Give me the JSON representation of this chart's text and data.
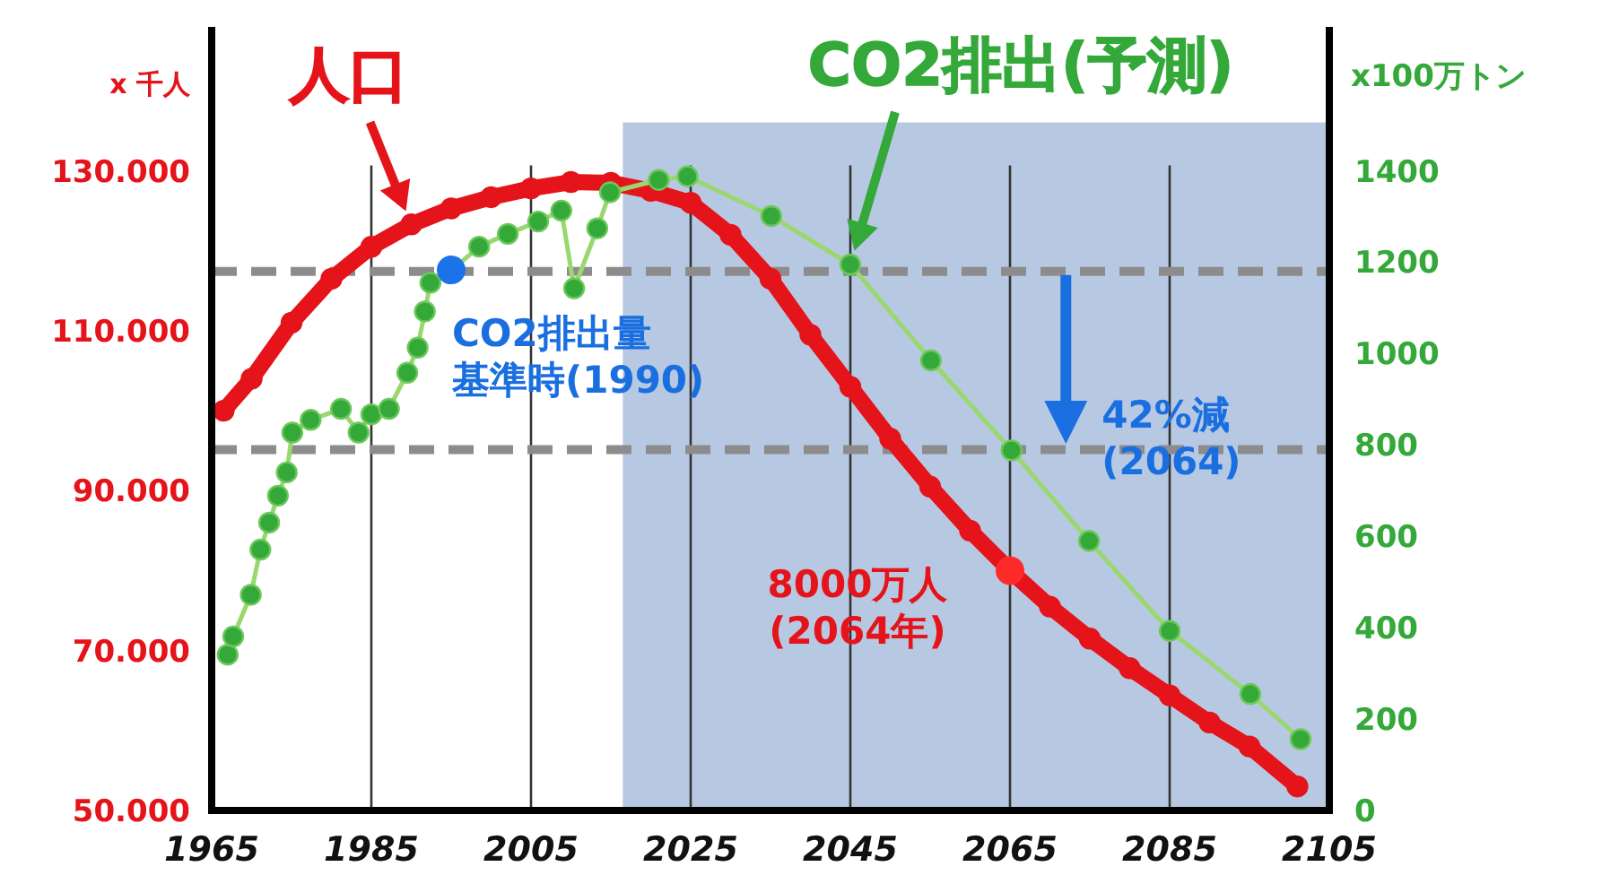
{
  "chart_data": {
    "type": "line",
    "ylabel": "x 千人",
    "y2label": "x100万トン",
    "xlim": [
      1965,
      2105
    ],
    "xticks": [
      1965,
      1985,
      2005,
      2025,
      2045,
      2065,
      2085,
      2105
    ],
    "ylim": [
      50000,
      148000
    ],
    "yticks": [
      {
        "value": 50000,
        "label": "50.000"
      },
      {
        "value": 70000,
        "label": "70.000"
      },
      {
        "value": 90000,
        "label": "90.000"
      },
      {
        "value": 110000,
        "label": "110.000"
      },
      {
        "value": 130000,
        "label": "130.000"
      }
    ],
    "y2lim": [
      0,
      1715
    ],
    "y2ticks": [
      0,
      200,
      400,
      600,
      800,
      1000,
      1200,
      1400
    ],
    "grid": "x",
    "marker": "circle",
    "line_style": "solid",
    "bands": [
      {
        "axis": "x",
        "from": 2016.5,
        "to": 2105,
        "color": "#b7c9e2"
      }
    ],
    "ref_lines": [
      {
        "axis": "y2",
        "value": 1180,
        "color": "#8c8c8c",
        "line_style": "dashed"
      },
      {
        "axis": "y2",
        "value": 790,
        "color": "#8c8c8c",
        "line_style": "dashed"
      }
    ],
    "series": [
      {
        "name": "人口",
        "color": "#e5131a",
        "x": [
          1966.5,
          1970,
          1975,
          1980,
          1985,
          1990,
          1995,
          2000,
          2005,
          2010,
          2015,
          2020,
          2025,
          2030,
          2035,
          2040,
          2045,
          2050,
          2055,
          2060,
          2065,
          2070,
          2075,
          2080,
          2085,
          2090,
          2095,
          2101
        ],
        "values": [
          100000,
          104000,
          111000,
          116500,
          120500,
          123300,
          125300,
          126700,
          127800,
          128600,
          128500,
          127500,
          126000,
          122000,
          116500,
          109500,
          103000,
          96500,
          90500,
          85000,
          80000,
          75500,
          71500,
          67800,
          64400,
          61000,
          58000,
          53000
        ]
      },
      {
        "name": "CO2排出(予測)",
        "color": "#34a93a",
        "axis": "y2",
        "x": [
          1967,
          1967.7,
          1969.9,
          1971.1,
          1972.2,
          1973.3,
          1974.4,
          1975.1,
          1977.4,
          1981.2,
          1983.4,
          1985,
          1987.2,
          1989.5,
          1990.8,
          1991.7,
          1992.4,
          1995.1,
          1998.5,
          2002.1,
          2005.9,
          2008.8,
          2010.4,
          2013.3,
          2014.9,
          2021,
          2024.6,
          2035.1,
          2045,
          2055.1,
          2065.2,
          2074.9,
          2085,
          2095.1,
          2101.4
        ],
        "values": [
          341,
          381,
          472,
          571,
          630,
          689,
          740,
          827,
          855,
          879,
          827,
          867,
          879,
          958,
          1013,
          1092,
          1155,
          1183,
          1234,
          1262,
          1289,
          1313,
          1143,
          1274,
          1353,
          1380,
          1388,
          1301,
          1195,
          985,
          788,
          590,
          393,
          255,
          156
        ]
      },
      {
        "type": "scatter",
        "color": "#1a73e8",
        "axis": "y2",
        "x": [
          1995
        ],
        "values": [
          1183
        ]
      },
      {
        "type": "scatter",
        "color": "#ff2a2a",
        "x": [
          2065
        ],
        "values": [
          80000
        ]
      }
    ],
    "annotations": [
      "CO2排出量基準時(1990)",
      {
        "text": "42%減(2064)",
        "x": 2072,
        "y": 95400
      },
      "8000万人(2064年)"
    ]
  }
}
